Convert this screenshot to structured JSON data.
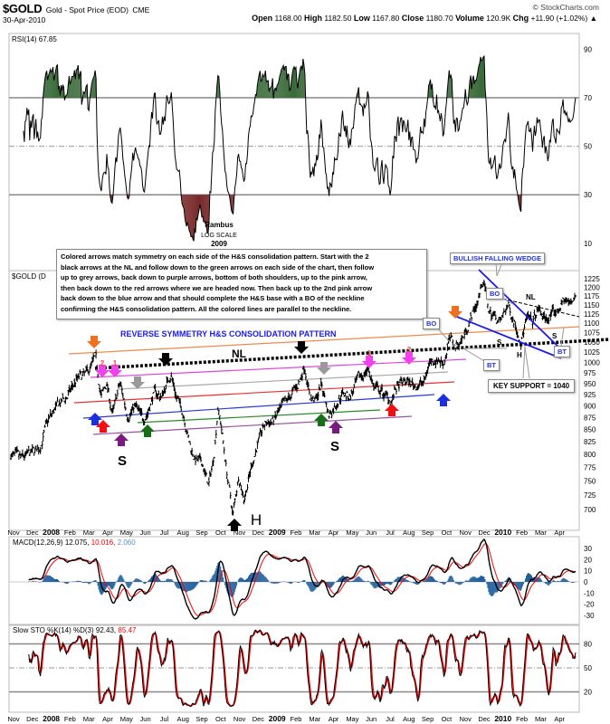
{
  "header": {
    "symbol": "$GOLD",
    "description": "Gold - Spot Price (EOD)",
    "exchange": "CME",
    "date": "30-Apr-2010",
    "watermark": "© StockCharts.com",
    "open_label": "Open",
    "open": "1168.00",
    "high_label": "High",
    "high": "1182.50",
    "low_label": "Low",
    "low": "1167.80",
    "close_label": "Close",
    "close": "1180.70",
    "volume_label": "Volume",
    "volume": "120.9K",
    "chg_label": "Chg",
    "chg": "+11.90 (+1.02%)",
    "chg_arrow": "▲"
  },
  "rsi_panel": {
    "legend": "RSI(14) 67.85",
    "ticks": [
      "90",
      "70",
      "50",
      "30",
      "10"
    ]
  },
  "price_panel": {
    "legend": "$GOLD (D",
    "ticks": [
      "1225",
      "1200",
      "1175",
      "1150",
      "1125",
      "1100",
      "1075",
      "1050",
      "1025",
      "1000",
      "975",
      "950",
      "925",
      "900",
      "875",
      "850",
      "825",
      "800",
      "775",
      "750",
      "725",
      "700"
    ]
  },
  "macd_panel": {
    "legend_name": "MACD(12,26,9)",
    "macd": "12.075",
    "signal": "10.016",
    "hist": "2.060",
    "ticks": [
      "30",
      "20",
      "10",
      "0",
      "-10",
      "-20",
      "-30"
    ]
  },
  "sto_panel": {
    "legend_name": "Slow STO %K(14) %D(3)",
    "k": "92.43",
    "d": "85.47",
    "ticks": [
      "80",
      "50",
      "20"
    ]
  },
  "date_axis": [
    "Nov",
    "Dec",
    "2008",
    "Feb",
    "Mar",
    "Apr",
    "May",
    "Jun",
    "Jul",
    "Aug",
    "Sep",
    "Oct",
    "Nov",
    "Dec",
    "2009",
    "Feb",
    "Mar",
    "Apr",
    "May",
    "Jun",
    "Jul",
    "Aug",
    "Sep",
    "Oct",
    "Nov",
    "Dec",
    "2010",
    "Feb",
    "Mar",
    "Apr"
  ],
  "annotations": {
    "rambus": "Rambus",
    "log_scale": "LOG SCALE",
    "year": "2009",
    "note_lines": [
      "Colored arrows match symmetry on each side of the H&S consolidation pattern. Start with the 2",
      "black arrows at the NL and follow down to the green arrows on each side of the chart, then follow",
      "up to grey arrows, back down to purple arrows, bottom of both shoulders, up to the pink arrow,",
      "then back down to the red arrows where we are headed now. Then back up to the 2nd pink arrow",
      "back down to the blue arrow and that should complete the H&S base with a BO of the neckline",
      "confirming the H&S consolidation pattern. All the colored lines are parallel to the neckline."
    ],
    "pattern_title": "REVERSE SYMMETRY H&S CONSOLIDATION PATTERN",
    "nl": "NL",
    "left_shoulder": "S",
    "right_shoulder": "S",
    "head": "H",
    "wedge_title": "BULLISH FALLING WEDGE",
    "wedge_nl": "NL",
    "wedge_s1": "S",
    "wedge_h": "H",
    "wedge_s2": "S",
    "bo1": "BO",
    "bo2": "BO",
    "bt1": "BT",
    "bt2": "BT",
    "key_support": "KEY SUPPORT = 1040",
    "arrow_num_2a": "2",
    "arrow_num_1a": "1",
    "arrow_num_1b": "1",
    "arrow_num_2b": "2"
  },
  "colors": {
    "up": "#000000",
    "macd": "#000000",
    "signal": "#ff0000",
    "hist": "#1f5f9f",
    "rsi_over": "#3a6b3a",
    "rsi_under": "#7a2a2a",
    "title_blue": "#1a1aee"
  },
  "chart_data": {
    "type": "line",
    "title": "$GOLD Gold - Spot Price (EOD) CME",
    "x_unit": "months since 1-Nov-2007",
    "y_scale": "log",
    "ylim": [
      690,
      1240
    ],
    "approx_close_waypoints": [
      [
        0,
        800
      ],
      [
        0.5,
        790
      ],
      [
        1,
        800
      ],
      [
        1.5,
        810
      ],
      [
        2,
        870
      ],
      [
        2.5,
        900
      ],
      [
        3,
        920
      ],
      [
        3.5,
        960
      ],
      [
        4,
        970
      ],
      [
        4.5,
        1010
      ],
      [
        4.8,
        920
      ],
      [
        5.1,
        950
      ],
      [
        5.4,
        880
      ],
      [
        5.8,
        950
      ],
      [
        6.2,
        880
      ],
      [
        6.6,
        900
      ],
      [
        7,
        870
      ],
      [
        7.3,
        890
      ],
      [
        7.6,
        930
      ],
      [
        8,
        920
      ],
      [
        8.5,
        975
      ],
      [
        8.8,
        920
      ],
      [
        9.2,
        880
      ],
      [
        9.5,
        820
      ],
      [
        9.8,
        790
      ],
      [
        10.2,
        780
      ],
      [
        10.5,
        740
      ],
      [
        10.8,
        800
      ],
      [
        11,
        900
      ],
      [
        11.2,
        850
      ],
      [
        11.5,
        760
      ],
      [
        11.8,
        690
      ],
      [
        12.1,
        760
      ],
      [
        12.4,
        720
      ],
      [
        12.8,
        780
      ],
      [
        13.1,
        820
      ],
      [
        13.5,
        860
      ],
      [
        14,
        870
      ],
      [
        14.5,
        900
      ],
      [
        15,
        930
      ],
      [
        15.3,
        950
      ],
      [
        15.6,
        995
      ],
      [
        15.9,
        920
      ],
      [
        16.2,
        910
      ],
      [
        16.5,
        950
      ],
      [
        16.9,
        880
      ],
      [
        17.2,
        900
      ],
      [
        17.6,
        930
      ],
      [
        18,
        920
      ],
      [
        18.5,
        960
      ],
      [
        19,
        985
      ],
      [
        19.3,
        940
      ],
      [
        19.7,
        930
      ],
      [
        20.2,
        910
      ],
      [
        20.5,
        940
      ],
      [
        21,
        955
      ],
      [
        21.5,
        945
      ],
      [
        22,
        955
      ],
      [
        22.2,
        1000
      ],
      [
        22.6,
        1010
      ],
      [
        23,
        1000
      ],
      [
        23.3,
        1060
      ],
      [
        23.6,
        1040
      ],
      [
        24,
        1060
      ],
      [
        24.4,
        1110
      ],
      [
        24.8,
        1160
      ],
      [
        25.1,
        1225
      ],
      [
        25.4,
        1130
      ],
      [
        25.7,
        1120
      ],
      [
        26,
        1100
      ],
      [
        26.4,
        1150
      ],
      [
        26.8,
        1100
      ],
      [
        27.1,
        1055
      ],
      [
        27.4,
        1110
      ],
      [
        27.7,
        1100
      ],
      [
        28,
        1135
      ],
      [
        28.4,
        1110
      ],
      [
        28.7,
        1120
      ],
      [
        29,
        1130
      ],
      [
        29.4,
        1165
      ],
      [
        29.7,
        1150
      ],
      [
        30,
        1180
      ]
    ],
    "rsi_levels": [
      70,
      50,
      30
    ],
    "sto_levels": [
      80,
      50,
      20
    ],
    "key_support": 1040
  }
}
